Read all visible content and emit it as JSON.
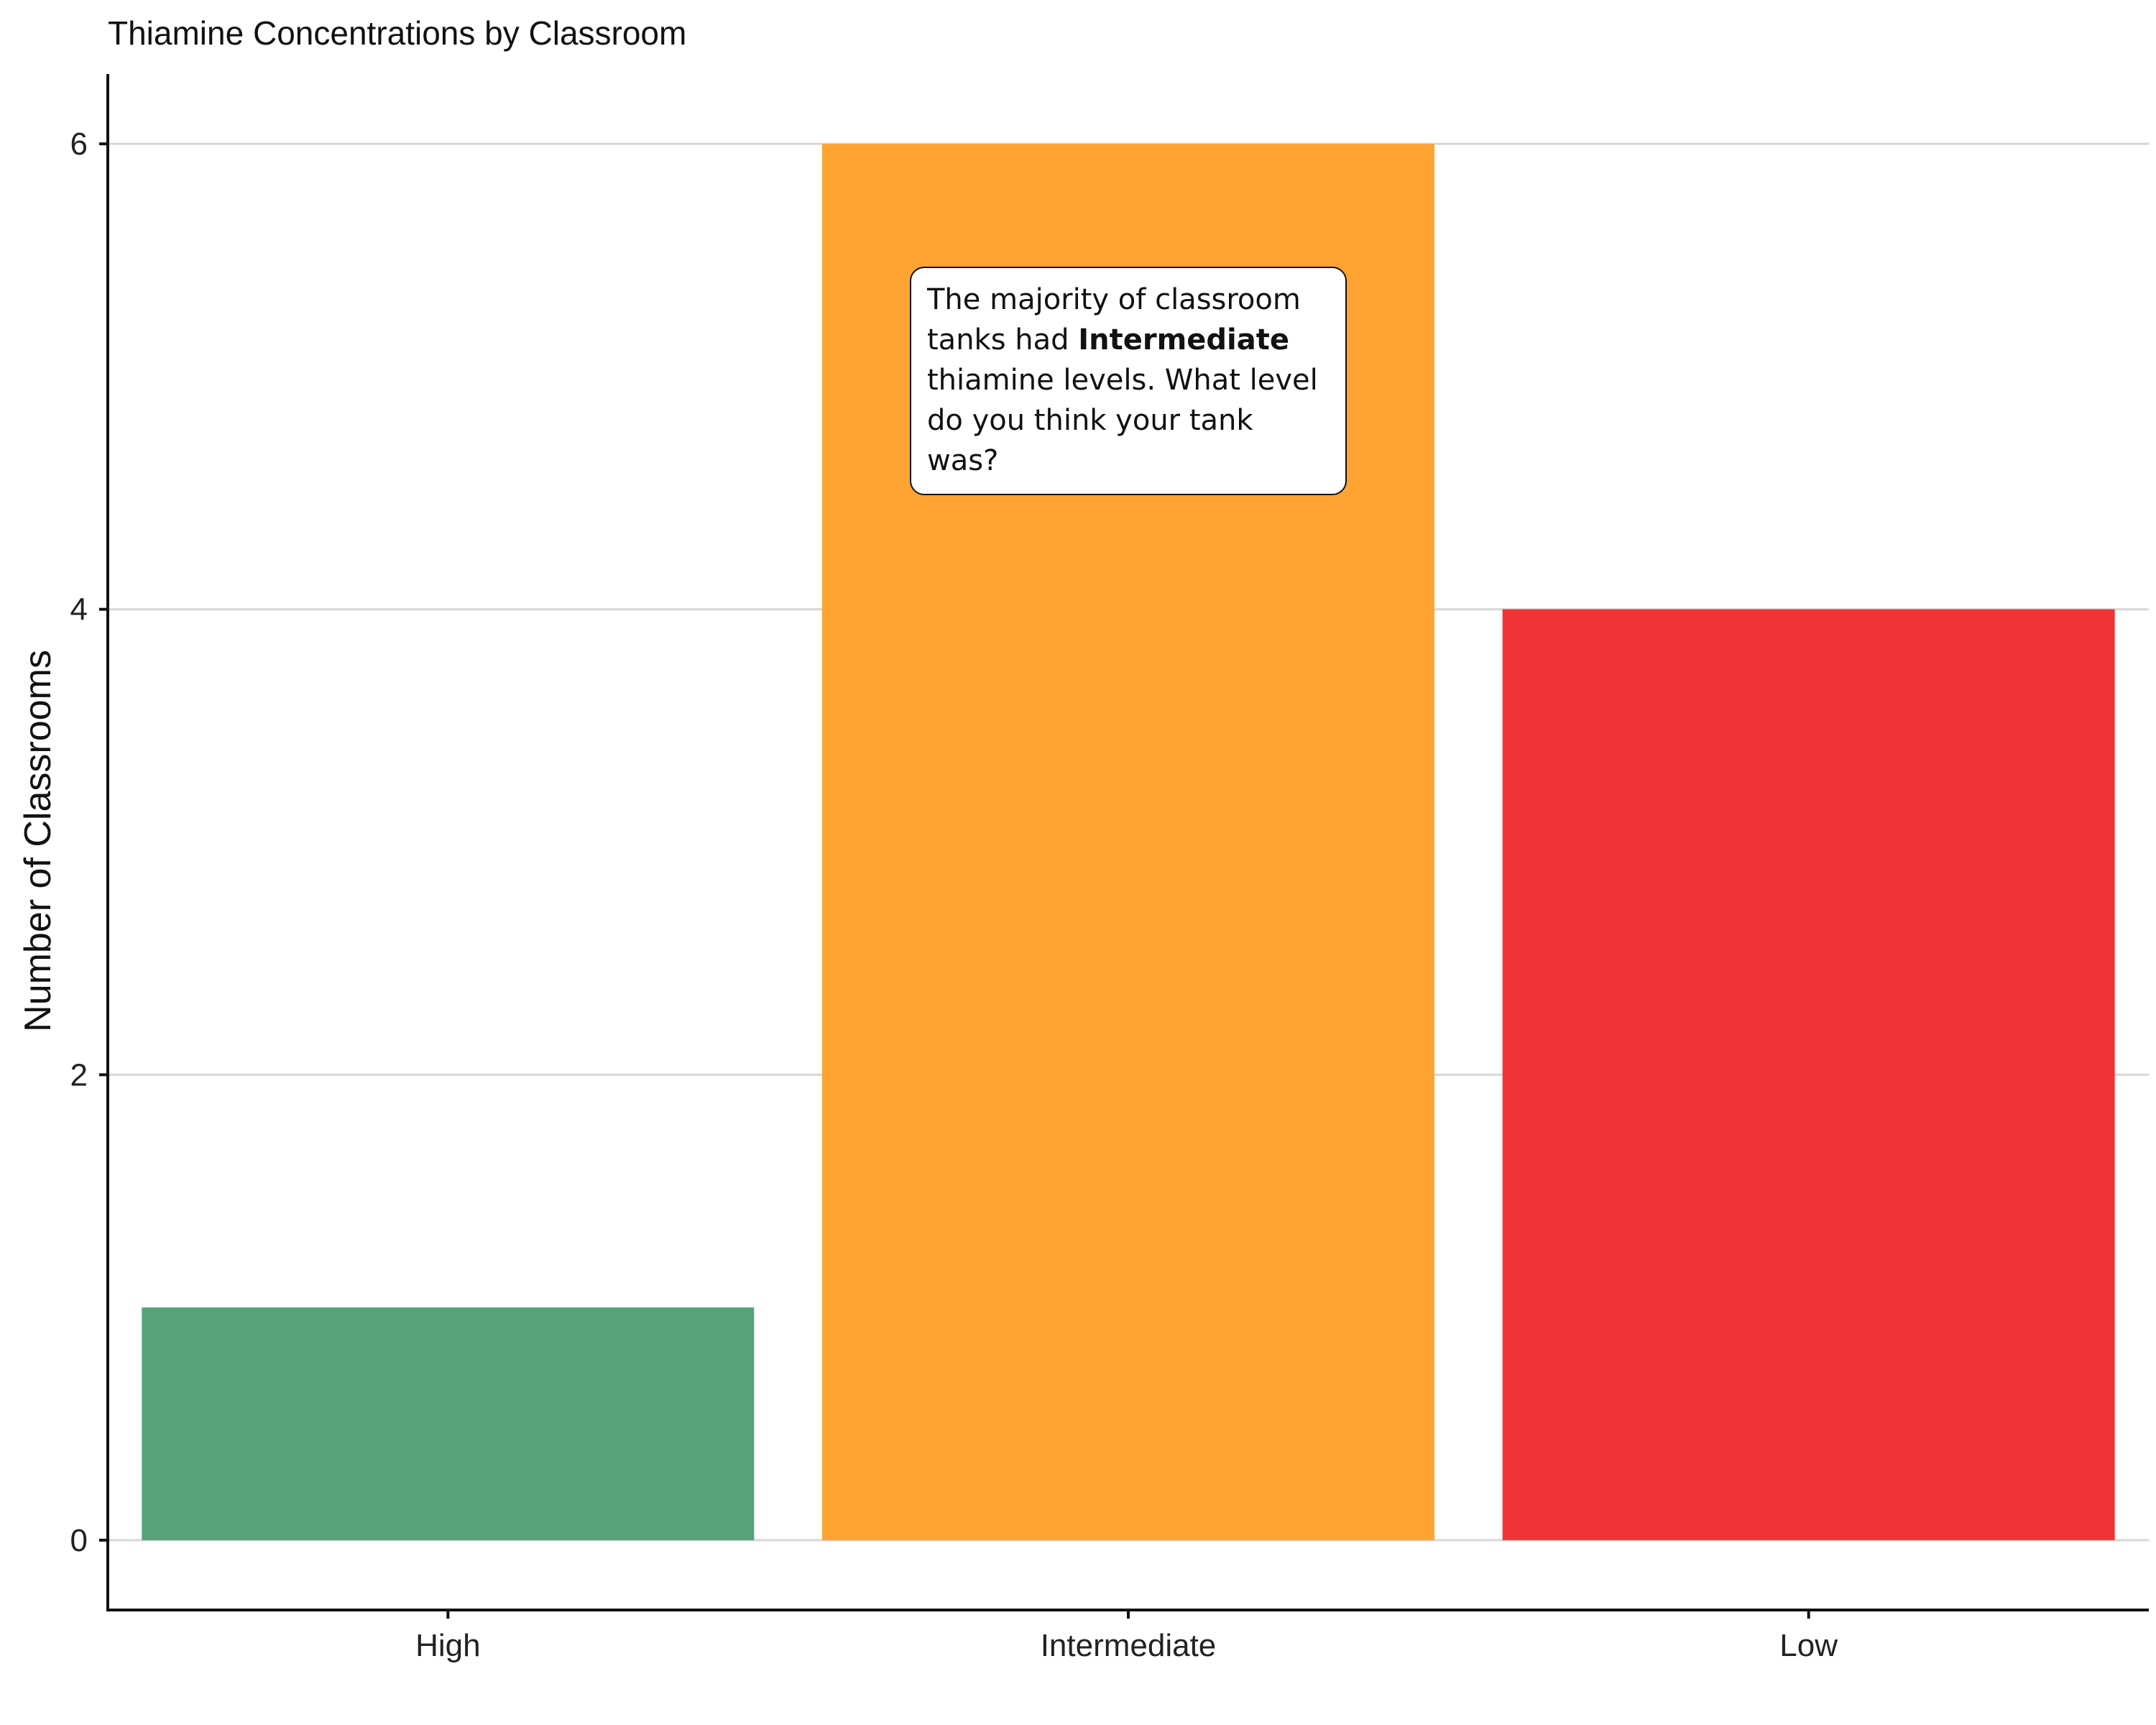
{
  "chart_data": {
    "type": "bar",
    "title": "Thiamine Concentrations by Classroom",
    "xlabel": "",
    "ylabel": "Number of Classrooms",
    "categories": [
      "High",
      "Intermediate",
      "Low"
    ],
    "values": [
      1,
      6,
      4
    ],
    "colors": [
      "#57a37a",
      "#ffa333",
      "#f03336"
    ],
    "ylim": [
      -0.3,
      6.3
    ],
    "yticks": [
      0,
      2,
      4,
      6
    ],
    "grid": true,
    "annotation": {
      "before": "The majority of classroom tanks had ",
      "bold": "Intermediate",
      "after": " thiamine levels. What level do you think your tank was?"
    }
  }
}
